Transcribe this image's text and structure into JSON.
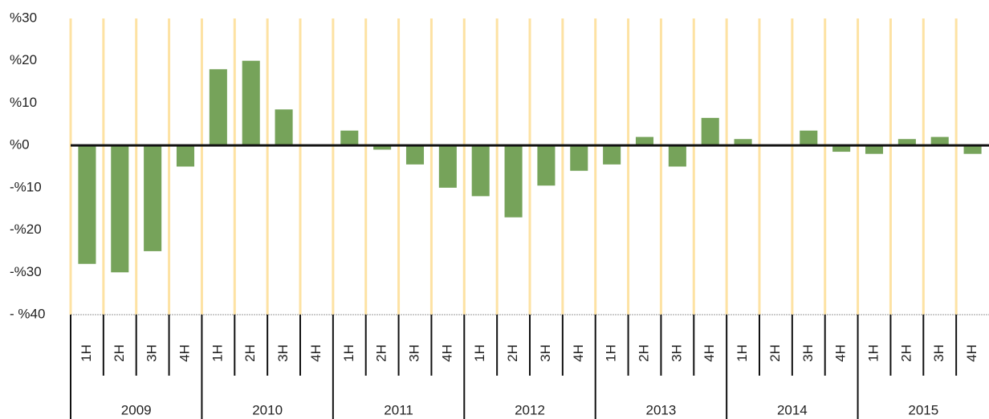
{
  "chart_data": {
    "type": "bar",
    "categories": [
      "1H",
      "2H",
      "3H",
      "4H",
      "1H",
      "2H",
      "3H",
      "4H",
      "1H",
      "2H",
      "3H",
      "4H",
      "1H",
      "2H",
      "3H",
      "4H",
      "1H",
      "2H",
      "3H",
      "4H",
      "1H",
      "2H",
      "3H",
      "4H",
      "1H",
      "2H",
      "3H",
      "4H"
    ],
    "years": [
      "2009",
      "2010",
      "2011",
      "2012",
      "2013",
      "2014",
      "2015"
    ],
    "values": [
      -28,
      -30,
      -25,
      -5,
      18,
      20,
      8.5,
      0,
      3.5,
      -1,
      -4.5,
      -10,
      -12,
      -17,
      -9.5,
      -6,
      -4.5,
      2,
      -5,
      6.5,
      1.5,
      0,
      3.5,
      -1.5,
      -2,
      1.5,
      2,
      -2
    ],
    "color": "#76a35a",
    "grid_color": "#fde2a3",
    "ylim": [
      -40,
      30
    ],
    "yticks": [
      {
        "value": 30,
        "label": "%30"
      },
      {
        "value": 20,
        "label": "%20"
      },
      {
        "value": 10,
        "label": "%10"
      },
      {
        "value": 0,
        "label": "%0"
      },
      {
        "value": -10,
        "label": "-%10"
      },
      {
        "value": -20,
        "label": "-%20"
      },
      {
        "value": -30,
        "label": "-%30"
      },
      {
        "value": -40,
        "label": "- %40"
      }
    ],
    "grid": true
  }
}
